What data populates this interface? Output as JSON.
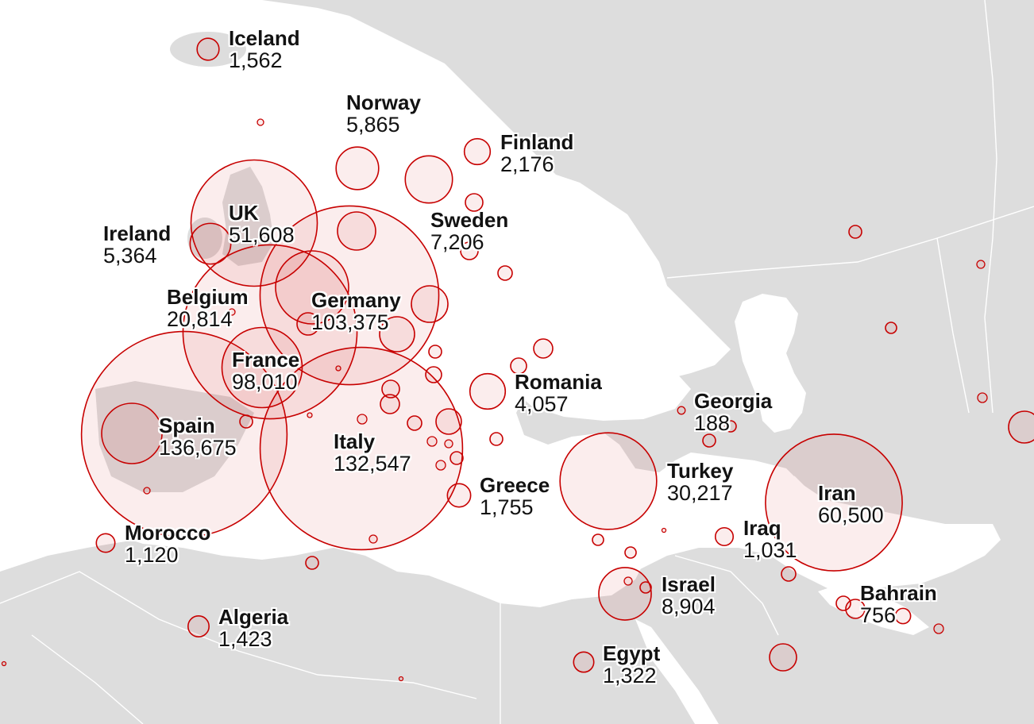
{
  "colors": {
    "land": "#dddddd",
    "land_light": "#e8e8e8",
    "sea": "#ffffff",
    "border": "#ffffff",
    "bubble_stroke": "#c70000",
    "bubble_fill": "rgba(199,0,0,0.07)"
  },
  "labels": [
    {
      "id": "iceland",
      "name": "Iceland",
      "value": "1,562"
    },
    {
      "id": "norway",
      "name": "Norway",
      "value": "5,865"
    },
    {
      "id": "finland",
      "name": "Finland",
      "value": "2,176"
    },
    {
      "id": "uk",
      "name": "UK",
      "value": "51,608"
    },
    {
      "id": "ireland",
      "name": "Ireland",
      "value": "5,364"
    },
    {
      "id": "sweden",
      "name": "Sweden",
      "value": "7,206"
    },
    {
      "id": "belgium",
      "name": "Belgium",
      "value": "20,814"
    },
    {
      "id": "germany",
      "name": "Germany",
      "value": "103,375"
    },
    {
      "id": "france",
      "name": "France",
      "value": "98,010"
    },
    {
      "id": "romania",
      "name": "Romania",
      "value": "4,057"
    },
    {
      "id": "georgia",
      "name": "Georgia",
      "value": "188"
    },
    {
      "id": "spain",
      "name": "Spain",
      "value": "136,675"
    },
    {
      "id": "italy",
      "name": "Italy",
      "value": "132,547"
    },
    {
      "id": "greece",
      "name": "Greece",
      "value": "1,755"
    },
    {
      "id": "turkey",
      "name": "Turkey",
      "value": "30,217"
    },
    {
      "id": "iran",
      "name": "Iran",
      "value": "60,500"
    },
    {
      "id": "iraq",
      "name": "Iraq",
      "value": "1,031"
    },
    {
      "id": "morocco",
      "name": "Morocco",
      "value": "1,120"
    },
    {
      "id": "israel",
      "name": "Israel",
      "value": "8,904"
    },
    {
      "id": "bahrain",
      "name": "Bahrain",
      "value": "756"
    },
    {
      "id": "algeria",
      "name": "Algeria",
      "value": "1,423"
    },
    {
      "id": "egypt",
      "name": "Egypt",
      "value": "1,322"
    }
  ]
}
